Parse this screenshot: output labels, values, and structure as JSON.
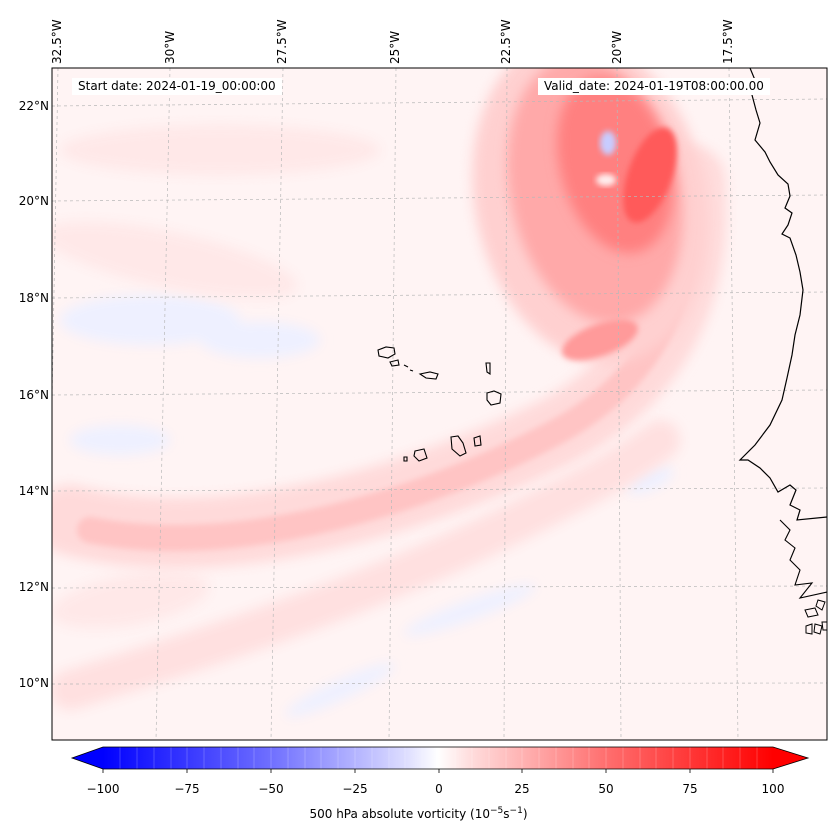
{
  "map": {
    "projection": "regional lat/lon",
    "extent": {
      "lon_min": -33.0,
      "lon_max": -15.5,
      "lat_min": 9.0,
      "lat_max": 22.8
    },
    "lon_labels": [
      "32.5°W",
      "30°W",
      "27.5°W",
      "25°W",
      "22.5°W",
      "20°W",
      "17.5°W"
    ],
    "lat_labels": [
      "22°N",
      "20°N",
      "18°N",
      "16°N",
      "14°N",
      "12°N",
      "10°N"
    ],
    "start_date_label": "Start date: 2024-01-19_00:00:00",
    "valid_date_label": "Valid_date: 2024-01-19T08:00:00.00",
    "gridlines": true,
    "coastline_color": "#000000",
    "field": "500 hPa absolute vorticity",
    "features": [
      "Positive vorticity band curving from northeast (near 21°W, 22°N) southwestward toward 30°W, 12°N",
      "Cape Verde islands near 23-25°W, 15-17°N",
      "West African coastline near 17°W"
    ]
  },
  "colorbar": {
    "ticks": [
      "−100",
      "−75",
      "−50",
      "−25",
      "0",
      "25",
      "50",
      "75",
      "100"
    ],
    "min": -100,
    "max": 100,
    "label": "500 hPa absolute vorticity (10",
    "label_exp1": "−5",
    "label_mid": "s",
    "label_exp2": "−1",
    "label_end": ")",
    "colors": {
      "negative": "#0000ff",
      "zero": "#ffffff",
      "positive": "#ff0000"
    }
  }
}
